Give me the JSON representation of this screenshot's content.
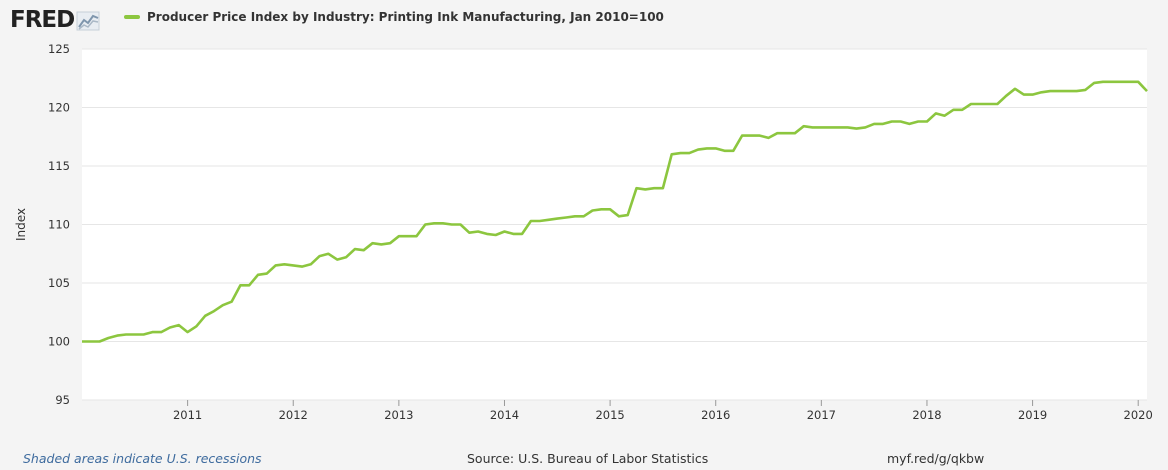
{
  "header": {
    "logo_text": "FRED",
    "logo_icon": "chart-line-icon",
    "legend_label": "Producer Price Index by Industry: Printing Ink Manufacturing, Jan 2010=100"
  },
  "footer": {
    "recession_note": "Shaded areas indicate U.S. recessions",
    "source": "Source: U.S. Bureau of Labor Statistics",
    "short_url": "myf.red/g/qkbw"
  },
  "colors": {
    "series": "#8cc63f",
    "grid": "#e6e6e6",
    "plot_bg": "#ffffff",
    "page_bg": "#f4f4f4"
  },
  "chart_data": {
    "type": "line",
    "title": "",
    "xlabel": "",
    "ylabel": "Index",
    "ylim": [
      95,
      125
    ],
    "yticks": [
      "95",
      "100",
      "105",
      "110",
      "115",
      "120",
      "125"
    ],
    "xticks": [
      "2011",
      "2012",
      "2013",
      "2014",
      "2015",
      "2016",
      "2017",
      "2018",
      "2019",
      "2020"
    ],
    "xlim": [
      "2010-01",
      "2020-02"
    ],
    "grid": true,
    "series": [
      {
        "name": "Producer Price Index by Industry: Printing Ink Manufacturing, Jan 2010=100",
        "x": [
          "2010-01",
          "2010-02",
          "2010-03",
          "2010-04",
          "2010-05",
          "2010-06",
          "2010-07",
          "2010-08",
          "2010-09",
          "2010-10",
          "2010-11",
          "2010-12",
          "2011-01",
          "2011-02",
          "2011-03",
          "2011-04",
          "2011-05",
          "2011-06",
          "2011-07",
          "2011-08",
          "2011-09",
          "2011-10",
          "2011-11",
          "2011-12",
          "2012-01",
          "2012-02",
          "2012-03",
          "2012-04",
          "2012-05",
          "2012-06",
          "2012-07",
          "2012-08",
          "2012-09",
          "2012-10",
          "2012-11",
          "2012-12",
          "2013-01",
          "2013-02",
          "2013-03",
          "2013-04",
          "2013-05",
          "2013-06",
          "2013-07",
          "2013-08",
          "2013-09",
          "2013-10",
          "2013-11",
          "2013-12",
          "2014-01",
          "2014-02",
          "2014-03",
          "2014-04",
          "2014-05",
          "2014-06",
          "2014-07",
          "2014-08",
          "2014-09",
          "2014-10",
          "2014-11",
          "2014-12",
          "2015-01",
          "2015-02",
          "2015-03",
          "2015-04",
          "2015-05",
          "2015-06",
          "2015-07",
          "2015-08",
          "2015-09",
          "2015-10",
          "2015-11",
          "2015-12",
          "2016-01",
          "2016-02",
          "2016-03",
          "2016-04",
          "2016-05",
          "2016-06",
          "2016-07",
          "2016-08",
          "2016-09",
          "2016-10",
          "2016-11",
          "2016-12",
          "2017-01",
          "2017-02",
          "2017-03",
          "2017-04",
          "2017-05",
          "2017-06",
          "2017-07",
          "2017-08",
          "2017-09",
          "2017-10",
          "2017-11",
          "2017-12",
          "2018-01",
          "2018-02",
          "2018-03",
          "2018-04",
          "2018-05",
          "2018-06",
          "2018-07",
          "2018-08",
          "2018-09",
          "2018-10",
          "2018-11",
          "2018-12",
          "2019-01",
          "2019-02",
          "2019-03",
          "2019-04",
          "2019-05",
          "2019-06",
          "2019-07",
          "2019-08",
          "2019-09",
          "2019-10",
          "2019-11",
          "2019-12",
          "2020-01",
          "2020-02"
        ],
        "values": [
          100.0,
          100.0,
          100.0,
          100.3,
          100.5,
          100.6,
          100.6,
          100.6,
          100.8,
          100.8,
          101.2,
          101.4,
          100.8,
          101.3,
          102.2,
          102.6,
          103.1,
          103.4,
          104.8,
          104.8,
          105.7,
          105.8,
          106.5,
          106.6,
          106.5,
          106.4,
          106.6,
          107.3,
          107.5,
          107.0,
          107.2,
          107.9,
          107.8,
          108.4,
          108.3,
          108.4,
          109.0,
          109.0,
          109.0,
          110.0,
          110.1,
          110.1,
          110.0,
          110.0,
          109.3,
          109.4,
          109.2,
          109.1,
          109.4,
          109.2,
          109.2,
          110.3,
          110.3,
          110.4,
          110.5,
          110.6,
          110.7,
          110.7,
          111.2,
          111.3,
          111.3,
          110.7,
          110.8,
          113.1,
          113.0,
          113.1,
          113.1,
          116.0,
          116.1,
          116.1,
          116.4,
          116.5,
          116.5,
          116.3,
          116.3,
          117.6,
          117.6,
          117.6,
          117.4,
          117.8,
          117.8,
          117.8,
          118.4,
          118.3,
          118.3,
          118.3,
          118.3,
          118.3,
          118.2,
          118.3,
          118.6,
          118.6,
          118.8,
          118.8,
          118.6,
          118.8,
          118.8,
          119.5,
          119.3,
          119.8,
          119.8,
          120.3,
          120.3,
          120.3,
          120.3,
          121.0,
          121.6,
          121.1,
          121.1,
          121.3,
          121.4,
          121.4,
          121.4,
          121.4,
          121.5,
          122.1,
          122.2,
          122.2,
          122.2,
          122.2,
          122.2,
          121.4
        ]
      }
    ]
  }
}
